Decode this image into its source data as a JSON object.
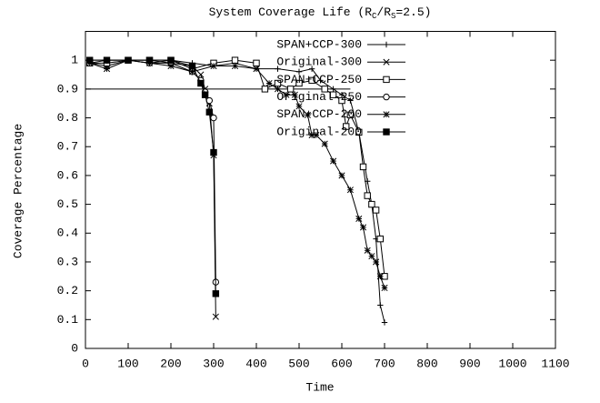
{
  "chart_data": {
    "type": "line",
    "title": [
      "System Coverage Life (R",
      "C",
      "/R",
      "S",
      "=2.5)"
    ],
    "x_label": "Time",
    "y_label": "Coverage Percentage",
    "xlim": [
      0,
      1100
    ],
    "xticks": [
      0,
      100,
      200,
      300,
      400,
      500,
      600,
      700,
      800,
      900,
      1000,
      1100
    ],
    "ylim": [
      0,
      1.1
    ],
    "yticks": [
      0,
      0.1,
      0.2,
      0.3,
      0.4,
      0.5,
      0.6,
      0.7,
      0.8,
      0.9,
      1
    ],
    "grid": false,
    "legend": "top-right",
    "reference_line": {
      "y": 0.9,
      "x": [
        0,
        620
      ]
    },
    "series": [
      {
        "name": "SPAN+CCP-300",
        "color": "#000000",
        "marker": "plus",
        "x": [
          10,
          50,
          100,
          150,
          200,
          250,
          300,
          350,
          400,
          450,
          500,
          530,
          550,
          580,
          600,
          620,
          640,
          660,
          670,
          680,
          690,
          700
        ],
        "values": [
          0.99,
          1,
          1,
          0.99,
          1,
          0.99,
          0.98,
          0.99,
          0.97,
          0.97,
          0.96,
          0.97,
          0.93,
          0.9,
          0.88,
          0.86,
          0.75,
          0.58,
          0.5,
          0.38,
          0.15,
          0.09
        ]
      },
      {
        "name": "Original-300",
        "color": "#000000",
        "marker": "cross",
        "x": [
          10,
          50,
          100,
          150,
          200,
          250,
          270,
          280,
          290,
          300,
          305
        ],
        "values": [
          0.99,
          0.98,
          1,
          1,
          0.99,
          0.98,
          0.95,
          0.9,
          0.85,
          0.67,
          0.11
        ]
      },
      {
        "name": "SPAN+CCP-250",
        "color": "#000000",
        "marker": "square",
        "x": [
          10,
          50,
          100,
          150,
          200,
          250,
          300,
          350,
          400,
          420,
          450,
          480,
          500,
          530,
          560,
          580,
          600,
          610,
          620,
          640,
          650,
          660,
          670,
          680,
          690,
          700
        ],
        "values": [
          0.99,
          0.99,
          1,
          1,
          1,
          0.97,
          0.99,
          1,
          0.99,
          0.9,
          0.92,
          0.9,
          0.92,
          0.93,
          0.9,
          0.88,
          0.86,
          0.77,
          0.81,
          0.75,
          0.63,
          0.53,
          0.5,
          0.48,
          0.38,
          0.25
        ]
      },
      {
        "name": "Original-250",
        "color": "#000000",
        "marker": "circle",
        "x": [
          10,
          50,
          100,
          150,
          200,
          250,
          270,
          280,
          290,
          300,
          305
        ],
        "values": [
          1,
          1,
          1,
          0.99,
          0.99,
          0.96,
          0.93,
          0.89,
          0.86,
          0.8,
          0.23
        ]
      },
      {
        "name": "SPAN+CCP-200",
        "color": "#000000",
        "marker": "star",
        "x": [
          10,
          50,
          100,
          150,
          200,
          250,
          300,
          350,
          400,
          430,
          450,
          470,
          490,
          500,
          520,
          530,
          540,
          560,
          580,
          600,
          620,
          640,
          650,
          660,
          670,
          680,
          690,
          700
        ],
        "values": [
          0.99,
          0.97,
          1,
          0.99,
          0.98,
          0.96,
          0.98,
          0.98,
          0.97,
          0.92,
          0.9,
          0.88,
          0.88,
          0.84,
          0.81,
          0.74,
          0.74,
          0.71,
          0.65,
          0.6,
          0.55,
          0.45,
          0.42,
          0.34,
          0.32,
          0.3,
          0.25,
          0.21
        ]
      },
      {
        "name": "Original-200",
        "color": "#000000",
        "marker": "filled-square",
        "x": [
          10,
          50,
          100,
          150,
          200,
          250,
          270,
          280,
          290,
          300,
          305
        ],
        "values": [
          1,
          1,
          1,
          1,
          1,
          0.98,
          0.92,
          0.88,
          0.82,
          0.68,
          0.19
        ]
      }
    ]
  }
}
